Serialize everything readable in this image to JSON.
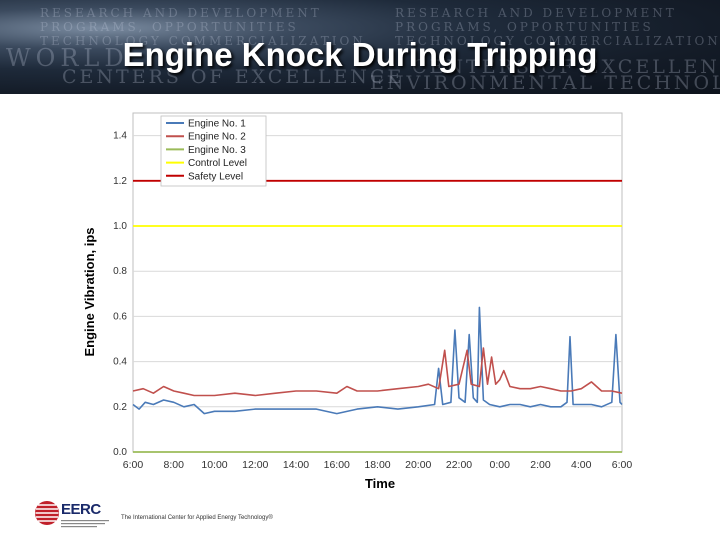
{
  "slide": {
    "title": "Engine Knock During Tripping"
  },
  "footer": {
    "logo_text": "EERC",
    "tagline": "The International Center for Applied Energy Technology®"
  },
  "banner": {
    "ghost_lines": [
      "RESEARCH AND DEVELOPMENT",
      "PROGRAMS, OPPORTUNITIES",
      "TECHNOLOGY COMMERCIALIZATION",
      "WORLD",
      "CENTERS OF EXCELLENCE",
      "ENVIRONMENTAL TECHNOLOGIES"
    ]
  },
  "chart_data": {
    "type": "line",
    "title": "",
    "xlabel": "Time",
    "ylabel": "Engine Vibration, ips",
    "x_ticks": [
      "6:00",
      "8:00",
      "10:00",
      "12:00",
      "14:00",
      "16:00",
      "18:00",
      "20:00",
      "22:00",
      "0:00",
      "2:00",
      "4:00",
      "6:00"
    ],
    "xlim_hours": [
      0,
      24
    ],
    "ylim": [
      0,
      1.5
    ],
    "y_ticks": [
      "0.0",
      "0.2",
      "0.4",
      "0.6",
      "0.8",
      "1.0",
      "1.2",
      "1.4"
    ],
    "grid": true,
    "legend_position": "top-left",
    "series": [
      {
        "name": "Engine No. 1",
        "color": "#4a7ab8",
        "points": [
          [
            0,
            0.21
          ],
          [
            0.3,
            0.19
          ],
          [
            0.6,
            0.22
          ],
          [
            1.0,
            0.21
          ],
          [
            1.5,
            0.23
          ],
          [
            2.0,
            0.22
          ],
          [
            2.5,
            0.2
          ],
          [
            3.0,
            0.21
          ],
          [
            3.5,
            0.17
          ],
          [
            4.0,
            0.18
          ],
          [
            5.0,
            0.18
          ],
          [
            6.0,
            0.19
          ],
          [
            7.0,
            0.19
          ],
          [
            8.0,
            0.19
          ],
          [
            9.0,
            0.19
          ],
          [
            10.0,
            0.17
          ],
          [
            11.0,
            0.19
          ],
          [
            12.0,
            0.2
          ],
          [
            13.0,
            0.19
          ],
          [
            14.0,
            0.2
          ],
          [
            14.8,
            0.21
          ],
          [
            15.0,
            0.37
          ],
          [
            15.2,
            0.21
          ],
          [
            15.6,
            0.22
          ],
          [
            15.8,
            0.54
          ],
          [
            16.0,
            0.24
          ],
          [
            16.3,
            0.22
          ],
          [
            16.5,
            0.52
          ],
          [
            16.7,
            0.24
          ],
          [
            16.9,
            0.22
          ],
          [
            17.0,
            0.64
          ],
          [
            17.2,
            0.23
          ],
          [
            17.5,
            0.21
          ],
          [
            18.0,
            0.2
          ],
          [
            18.5,
            0.21
          ],
          [
            19.0,
            0.21
          ],
          [
            19.5,
            0.2
          ],
          [
            20.0,
            0.21
          ],
          [
            20.5,
            0.2
          ],
          [
            21.0,
            0.2
          ],
          [
            21.3,
            0.22
          ],
          [
            21.45,
            0.51
          ],
          [
            21.6,
            0.21
          ],
          [
            22.0,
            0.21
          ],
          [
            22.5,
            0.21
          ],
          [
            23.0,
            0.2
          ],
          [
            23.5,
            0.22
          ],
          [
            23.7,
            0.52
          ],
          [
            23.9,
            0.22
          ],
          [
            24.0,
            0.21
          ]
        ]
      },
      {
        "name": "Engine No. 2",
        "color": "#c0504d",
        "points": [
          [
            0,
            0.27
          ],
          [
            0.5,
            0.28
          ],
          [
            1.0,
            0.26
          ],
          [
            1.5,
            0.29
          ],
          [
            2.0,
            0.27
          ],
          [
            2.5,
            0.26
          ],
          [
            3.0,
            0.25
          ],
          [
            4.0,
            0.25
          ],
          [
            5.0,
            0.26
          ],
          [
            6.0,
            0.25
          ],
          [
            7.0,
            0.26
          ],
          [
            8.0,
            0.27
          ],
          [
            9.0,
            0.27
          ],
          [
            10.0,
            0.26
          ],
          [
            10.5,
            0.29
          ],
          [
            11.0,
            0.27
          ],
          [
            12.0,
            0.27
          ],
          [
            13.0,
            0.28
          ],
          [
            14.0,
            0.29
          ],
          [
            14.5,
            0.3
          ],
          [
            15.0,
            0.28
          ],
          [
            15.3,
            0.45
          ],
          [
            15.5,
            0.29
          ],
          [
            16.0,
            0.3
          ],
          [
            16.4,
            0.45
          ],
          [
            16.6,
            0.3
          ],
          [
            17.0,
            0.29
          ],
          [
            17.2,
            0.46
          ],
          [
            17.4,
            0.3
          ],
          [
            17.6,
            0.42
          ],
          [
            17.8,
            0.3
          ],
          [
            18.0,
            0.32
          ],
          [
            18.2,
            0.36
          ],
          [
            18.5,
            0.29
          ],
          [
            19.0,
            0.28
          ],
          [
            19.5,
            0.28
          ],
          [
            20.0,
            0.29
          ],
          [
            20.5,
            0.28
          ],
          [
            21.0,
            0.27
          ],
          [
            21.5,
            0.27
          ],
          [
            22.0,
            0.28
          ],
          [
            22.5,
            0.31
          ],
          [
            23.0,
            0.27
          ],
          [
            23.5,
            0.27
          ],
          [
            24.0,
            0.26
          ]
        ]
      },
      {
        "name": "Engine No. 3",
        "color": "#9bbb59",
        "points": [
          [
            0,
            0.0
          ],
          [
            24,
            0.0
          ]
        ]
      },
      {
        "name": "Control Level",
        "color": "#ffff00",
        "points": [
          [
            0,
            1.0
          ],
          [
            24,
            1.0
          ]
        ]
      },
      {
        "name": "Safety Level",
        "color": "#c00000",
        "points": [
          [
            0,
            1.2
          ],
          [
            24,
            1.2
          ]
        ]
      }
    ]
  }
}
